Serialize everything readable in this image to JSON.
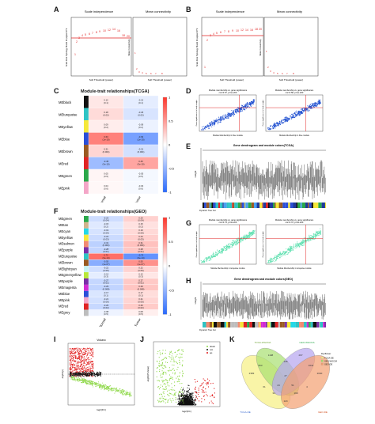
{
  "panels": {
    "A": {
      "letter": "A",
      "left_title": "Scale independence",
      "right_title": "Mean connectivity",
      "left_xlabel": "Soft Threshold (power)",
      "right_xlabel": "Soft Threshold (power)",
      "left_ylabel": "Scale Free Topology Model Fit,signed R^2",
      "right_ylabel": "Mean Connectivity"
    },
    "B": {
      "letter": "B",
      "left_title": "Scale independence",
      "right_title": "Mean connectivity",
      "left_xlabel": "Soft Threshold (power)",
      "right_xlabel": "Soft Threshold (power)",
      "left_ylabel": "Scale Free Topology Model Fit,signed R^2",
      "right_ylabel": "Mean Connectivity"
    },
    "C": {
      "letter": "C",
      "title": "Module-trait relationships(TCGA)",
      "modules": [
        "MEblack",
        "MEturquoise",
        "MEyellow",
        "MEblue",
        "MEbrown",
        "MEred",
        "MEgreen",
        "MEpink"
      ],
      "module_colors": [
        "#111111",
        "#2ec4c4",
        "#f5e83a",
        "#2b4fd8",
        "#9a5a22",
        "#e02424",
        "#2aa84a",
        "#f4a6c8"
      ],
      "cells": [
        [
          "0.12\n(0.1)",
          "-0.12\n(0.1)"
        ],
        [
          "0.18\n(0.02)",
          "-0.18\n(0.02)"
        ],
        [
          "0.09\n(0.2)",
          "-0.09\n(0.2)"
        ],
        [
          "0.63\n(1e-19)",
          "-0.63\n(1e-19)"
        ],
        [
          "0.21\n(0.004)",
          "-0.21\n(0.004)"
        ],
        [
          "-0.45\n(3e-10)",
          "0.45\n(3e-10)"
        ],
        [
          "0.05\n(0.5)",
          "-0.05\n(0.5)"
        ],
        [
          "0.04\n(0.6)",
          "-0.04\n(0.6)"
        ]
      ],
      "values": [
        [
          0.12,
          -0.12
        ],
        [
          0.18,
          -0.18
        ],
        [
          0.09,
          -0.09
        ],
        [
          0.63,
          -0.63
        ],
        [
          0.21,
          -0.21
        ],
        [
          -0.45,
          0.45
        ],
        [
          0.05,
          -0.05
        ],
        [
          0.04,
          -0.04
        ]
      ],
      "traits": [
        "Normal",
        "Tumor"
      ],
      "scale_labels": [
        "1",
        "0.5",
        "0",
        "-0.5",
        "-1"
      ]
    },
    "D": {
      "letter": "D",
      "left_title": "Module membership vs. gene significance\ncor=0.57, p=1e-200",
      "right_title": "Module membership vs. gene significance\ncor=0.58, p=1e-200",
      "xlabel": "Module Membership in blue module",
      "ylabel": "Gene significance for body weight"
    },
    "E": {
      "letter": "E",
      "title": "Gene dendrogram and module colors(TCGA)",
      "ylabel": "Height",
      "footer": "Dynamic Tree Cut"
    },
    "F": {
      "letter": "F",
      "title": "Module-trait relationships(GEO)",
      "modules": [
        "MEgreen",
        "MEtan",
        "MEcyan",
        "MEyellow",
        "MEsalmon",
        "MEpurple",
        "MEturquoise",
        "MEbrown",
        "MElightcyan",
        "MEgreenyellow",
        "MEpurple",
        "MEmagenta",
        "MEblue",
        "MEpink",
        "MEred",
        "MEgrey"
      ],
      "module_colors": [
        "#2aa84a",
        "#d2b48c",
        "#22d8e8",
        "#f5e83a",
        "#f28a72",
        "#7a2ea8",
        "#2ec4c4",
        "#9a5a22",
        "#c8f4f4",
        "#b8e83a",
        "#7a2ea8",
        "#d42ad4",
        "#2b4fd8",
        "#f4a6c8",
        "#e02424",
        "#bdbdbd"
      ],
      "cells": [
        [
          "-0.23\n(0.04)",
          "0.23\n(0.04)"
        ],
        [
          "-0.15\n(0.2)",
          "0.15\n(0.2)"
        ],
        [
          "-0.19\n(0.09)",
          "0.19\n(0.09)"
        ],
        [
          "-0.24\n(0.03)",
          "0.24\n(0.03)"
        ],
        [
          "-0.31\n(0.004)",
          "0.31\n(0.004)"
        ],
        [
          "-0.28\n(0.01)",
          "0.28\n(0.01)"
        ],
        [
          "0.72\n(3e-14)",
          "-0.72\n(3e-14)"
        ],
        [
          "-0.55\n(1e-07)",
          "0.55\n(1e-07)"
        ],
        [
          "-0.22\n(0.05)",
          "0.22\n(0.05)"
        ],
        [
          "-0.12\n(0.3)",
          "0.12\n(0.3)"
        ],
        [
          "-0.27\n(0.01)",
          "0.27\n(0.01)"
        ],
        [
          "-0.29\n(0.008)",
          "0.29\n(0.008)"
        ],
        [
          "-0.17\n(0.1)",
          "0.17\n(0.1)"
        ],
        [
          "-0.21\n(0.06)",
          "0.21\n(0.06)"
        ],
        [
          "-0.26\n(0.02)",
          "0.26\n(0.02)"
        ],
        [
          "-0.08\n(0.5)",
          "0.08\n(0.5)"
        ]
      ],
      "values": [
        [
          -0.23,
          0.23
        ],
        [
          -0.15,
          0.15
        ],
        [
          -0.19,
          0.19
        ],
        [
          -0.24,
          0.24
        ],
        [
          -0.31,
          0.31
        ],
        [
          -0.28,
          0.28
        ],
        [
          0.72,
          -0.72
        ],
        [
          -0.55,
          0.55
        ],
        [
          -0.22,
          0.22
        ],
        [
          -0.12,
          0.12
        ],
        [
          -0.27,
          0.27
        ],
        [
          -0.29,
          0.29
        ],
        [
          -0.17,
          0.17
        ],
        [
          -0.21,
          0.21
        ],
        [
          -0.26,
          0.26
        ],
        [
          -0.08,
          0.08
        ]
      ],
      "traits": [
        "Normal",
        "Tumor"
      ],
      "scale_labels": [
        "1",
        "0.5",
        "0",
        "-0.5",
        "-1"
      ]
    },
    "G": {
      "letter": "G",
      "left_title": "Module membership vs. gene significance\ncor=0.73, p=1e-200",
      "right_title": "Module membership vs. gene significance\ncor=0.72, p=1e-200",
      "xlabel": "Module Membership in turquoise module",
      "ylabel": "Gene significance for body weight"
    },
    "H": {
      "letter": "H",
      "title": "Gene dendrogram and module colors(GEO)",
      "ylabel": "Height",
      "footer": "Dynamic Tree Cut"
    },
    "I": {
      "letter": "I",
      "title": "Volcano",
      "xlabel": "log2(FC)",
      "ylabel": "-log10(p)"
    },
    "J": {
      "letter": "J",
      "xlabel": "log2(FC)",
      "ylabel": "-log10(P.Value)",
      "legend": [
        "down",
        "not",
        "up"
      ]
    },
    "K": {
      "letter": "K",
      "labels": [
        "TCGA-DE",
        "TCGA-WGCNA",
        "GEO-WGCNA",
        "GEO-DE"
      ],
      "legend_title": "Dysflower",
      "legend": [
        "TCGA-DE",
        "GEO-WGCNA",
        "GEO-DE"
      ],
      "counts": [
        "2383",
        "1108",
        "297",
        "2040",
        "563",
        "135",
        "1041",
        "61",
        "27",
        "4",
        "34",
        "190",
        "24",
        "51",
        "124"
      ]
    }
  }
}
